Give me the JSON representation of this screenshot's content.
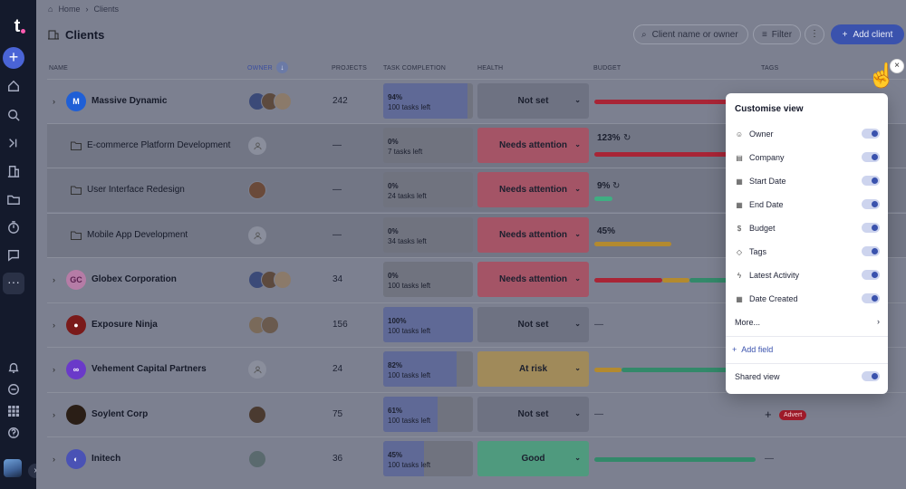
{
  "breadcrumb": {
    "home": "Home",
    "current": "Clients"
  },
  "header": {
    "title": "Clients",
    "search_placeholder": "Client name or owner",
    "filter_label": "Filter",
    "add_label": "Add client"
  },
  "columns": {
    "name": "NAME",
    "owner": "OWNER",
    "projects": "PROJECTS",
    "task": "TASK COMPLETION",
    "health": "HEALTH",
    "budget": "BUDGET",
    "tags": "TAGS"
  },
  "rows": [
    {
      "name": "Massive Dynamic",
      "logo_text": "M",
      "projects": "242",
      "task_pct": "94%",
      "task_left": "100 tasks left",
      "task_fill": 0.94,
      "health": "Not set",
      "budget_pct": ""
    },
    {
      "name": "E-commerce Platform Development",
      "projects": "—",
      "task_pct": "0%",
      "task_left": "7 tasks left",
      "task_fill": 0,
      "health": "Needs attention",
      "budget_pct": "123%"
    },
    {
      "name": "User Interface Redesign",
      "projects": "—",
      "task_pct": "0%",
      "task_left": "24 tasks left",
      "task_fill": 0,
      "health": "Needs attention",
      "budget_pct": "9%"
    },
    {
      "name": "Mobile App Development",
      "projects": "—",
      "task_pct": "0%",
      "task_left": "34 tasks left",
      "task_fill": 0,
      "health": "Needs attention",
      "budget_pct": "45%"
    },
    {
      "name": "Globex Corporation",
      "logo_text": "GC",
      "projects": "34",
      "task_pct": "0%",
      "task_left": "100 tasks left",
      "task_fill": 0,
      "health": "Needs attention",
      "budget_pct": ""
    },
    {
      "name": "Exposure Ninja",
      "projects": "156",
      "task_pct": "100%",
      "task_left": "100 tasks left",
      "task_fill": 1.0,
      "health": "Not set",
      "budget_pct": ""
    },
    {
      "name": "Vehement Capital Partners",
      "projects": "24",
      "task_pct": "82%",
      "task_left": "100 tasks left",
      "task_fill": 0.82,
      "health": "At risk",
      "budget_pct": ""
    },
    {
      "name": "Soylent Corp",
      "projects": "75",
      "task_pct": "61%",
      "task_left": "100 tasks left",
      "task_fill": 0.61,
      "health": "Not set",
      "budget_pct": "",
      "tag": "Advert"
    },
    {
      "name": "Initech",
      "projects": "36",
      "task_pct": "45%",
      "task_left": "100 tasks left",
      "task_fill": 0.45,
      "health": "Good",
      "budget_pct": ""
    }
  ],
  "customise": {
    "title": "Customise view",
    "options": [
      "Owner",
      "Company",
      "Start Date",
      "End Date",
      "Budget",
      "Tags",
      "Latest Activity",
      "Date Created"
    ],
    "more": "More...",
    "add_field": "Add field",
    "shared_view": "Shared view"
  },
  "colors": {
    "accent": "#3a52ad",
    "needs_attention": "#cf4a64",
    "at_risk": "#d8a33e",
    "good": "#3fae82",
    "budget_red": "#c9283c",
    "budget_yellow": "#e3b43b",
    "budget_green": "#3fae82"
  }
}
